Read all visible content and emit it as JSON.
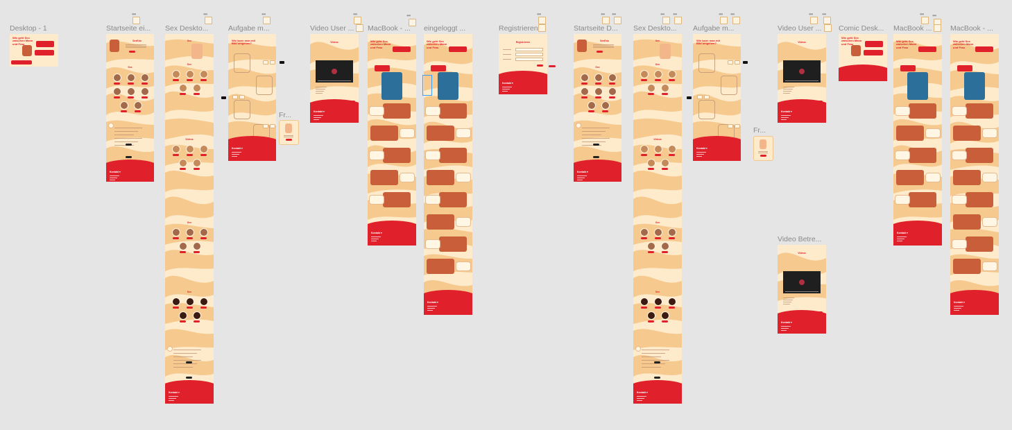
{
  "canvas": {
    "background": "#e5e5e5",
    "colors": {
      "accent_red": "#e0202a",
      "cream": "#fdebcb",
      "peach": "#f6c98f",
      "label_gray": "#8a8a8a"
    }
  },
  "frames": [
    {
      "id": "desktop-1",
      "label": "Desktop - 1",
      "type": "hero"
    },
    {
      "id": "startseite-1",
      "label": "Startseite ei...",
      "type": "home"
    },
    {
      "id": "sex-desktop-1",
      "label": "Sex Deskto...",
      "type": "long-list"
    },
    {
      "id": "aufgabe-1",
      "label": "Aufgabe m...",
      "type": "task"
    },
    {
      "id": "fr-1",
      "label": "Fr...",
      "type": "small"
    },
    {
      "id": "video-user-1",
      "label": "Video User ...",
      "type": "video"
    },
    {
      "id": "macbook-1",
      "label": "MacBook - ...",
      "type": "comic"
    },
    {
      "id": "eingeloggt",
      "label": "eingeloggt ...",
      "type": "comic-long"
    },
    {
      "id": "registrieren",
      "label": "Registrieren",
      "type": "form"
    },
    {
      "id": "startseite-2",
      "label": "Startseite D...",
      "type": "home"
    },
    {
      "id": "sex-desktop-2",
      "label": "Sex Deskto...",
      "type": "long-list"
    },
    {
      "id": "aufgabe-2",
      "label": "Aufgabe m...",
      "type": "task"
    },
    {
      "id": "fr-2",
      "label": "Fr...",
      "type": "small"
    },
    {
      "id": "video-user-2",
      "label": "Video User ...",
      "type": "video"
    },
    {
      "id": "comic-desktop",
      "label": "Comic Desk...",
      "type": "hero"
    },
    {
      "id": "macbook-2",
      "label": "MacBook ...",
      "type": "comic"
    },
    {
      "id": "macbook-3",
      "label": "MacBook - ...",
      "type": "comic-long"
    },
    {
      "id": "video-betreuer",
      "label": "Video Betre...",
      "type": "video"
    }
  ],
  "content": {
    "hero_title": "Wie geht Sex zwischen Mann und Frau",
    "home_title": "SexEdu",
    "sex_heading": "Sex",
    "video_heading": "Videos",
    "task_heading": "Wie kann man mit Bild umgehen?",
    "register_heading": "Registrieren",
    "footer_label": "Kontakt ▾"
  }
}
